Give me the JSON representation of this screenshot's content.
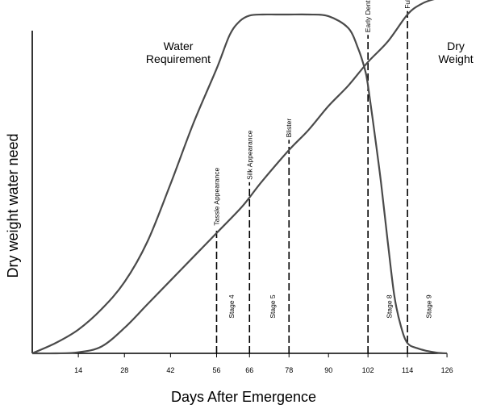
{
  "chart_data": {
    "type": "line",
    "xlabel": "Days After Emergence",
    "ylabel": "Dry weight water need",
    "xlim": [
      0,
      126
    ],
    "ylim": [
      0,
      100
    ],
    "x_ticks": [
      14,
      28,
      42,
      56,
      66,
      78,
      90,
      102,
      114,
      126
    ],
    "series": [
      {
        "name": "Water Requirement",
        "label_lines": [
          "Water",
          "Requirement"
        ],
        "x": [
          0,
          7,
          14,
          21,
          28,
          35,
          42,
          49,
          56,
          60,
          63,
          66,
          70,
          74,
          78,
          84,
          90,
          96,
          99,
          101,
          102,
          104,
          106,
          108,
          110,
          112,
          114,
          117,
          120,
          123,
          126
        ],
        "y": [
          0,
          3,
          7,
          13,
          21,
          33,
          50,
          68,
          84,
          94,
          98,
          99.7,
          100,
          100,
          100,
          100,
          99.5,
          96,
          90,
          84,
          79,
          65,
          50,
          33,
          17,
          8,
          3,
          1.5,
          0.7,
          0.2,
          0
        ]
      },
      {
        "name": "Dry Weight",
        "label_lines": [
          "Dry",
          "Weight"
        ],
        "x": [
          0,
          7,
          14,
          21,
          28,
          35,
          42,
          49,
          56,
          63,
          66,
          70,
          78,
          84,
          90,
          96,
          102,
          108,
          114,
          118,
          122,
          126
        ],
        "y": [
          0,
          0,
          0.3,
          2,
          7.5,
          14.5,
          21.5,
          28.5,
          35.5,
          42.5,
          46,
          51,
          60,
          66,
          73,
          79,
          86,
          92,
          100,
          103,
          104.5,
          105
        ]
      }
    ],
    "stage_markers": [
      {
        "x": 56,
        "label": "Tassle Appearance",
        "y_top": 37
      },
      {
        "x": 66,
        "label": "Silk Appearance",
        "y_top": 50.5
      },
      {
        "x": 78,
        "label": "Blister",
        "y_top": 63
      },
      {
        "x": 102,
        "label": "Early Dent",
        "y_top": 94
      },
      {
        "x": 114,
        "label": "Full Dent",
        "y_top": 101
      }
    ],
    "stage_labels": [
      {
        "x": 60.5,
        "label": "Stage 4"
      },
      {
        "x": 73,
        "label": "Stage 5"
      },
      {
        "x": 108.5,
        "label": "Stage 8"
      },
      {
        "x": 120.5,
        "label": "Stage 9"
      }
    ]
  }
}
